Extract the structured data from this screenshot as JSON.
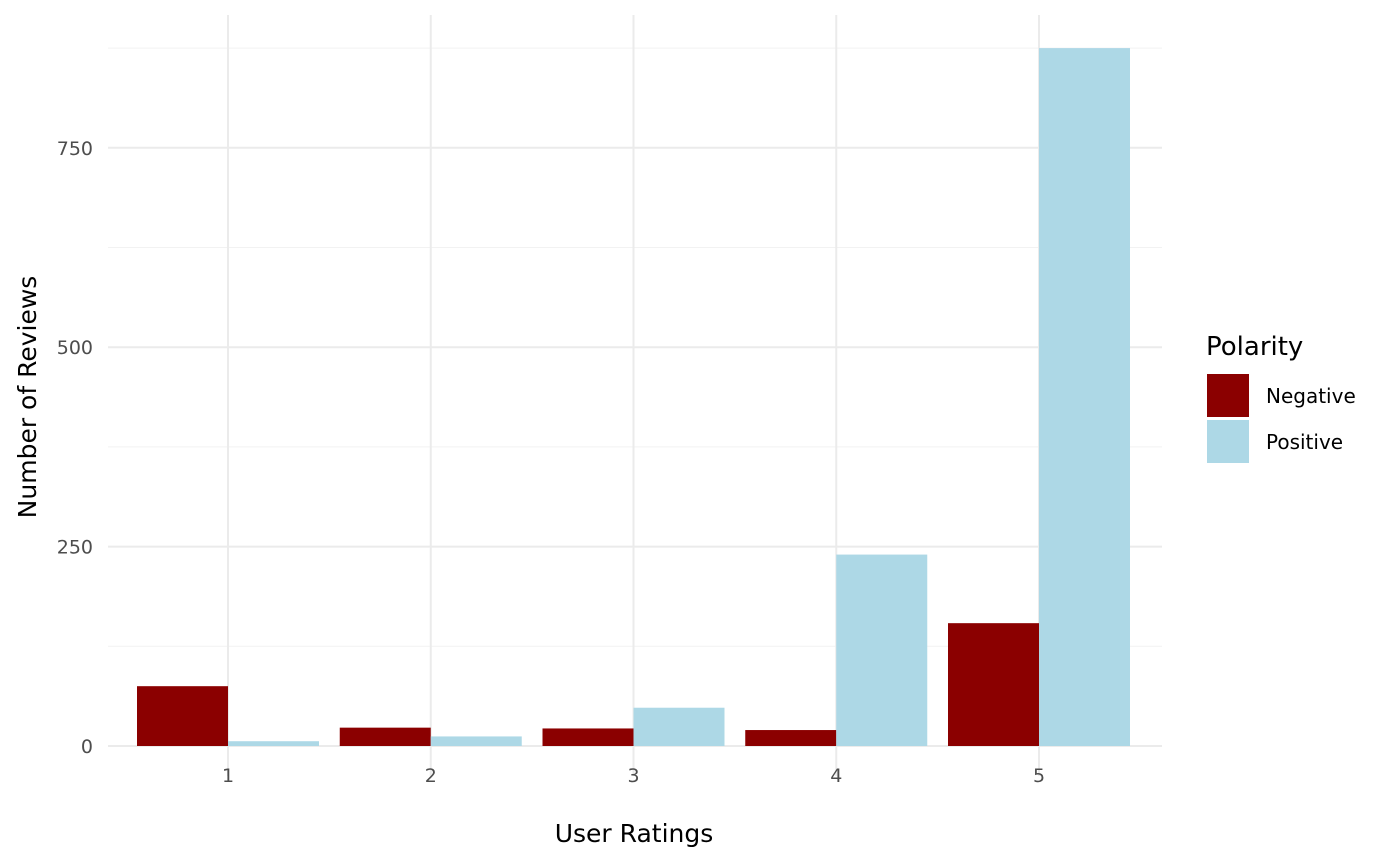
{
  "chart_data": {
    "type": "bar",
    "categories": [
      "1",
      "2",
      "3",
      "4",
      "5"
    ],
    "series": [
      {
        "name": "Negative",
        "color": "#8b0000",
        "values": [
          75,
          23,
          22,
          20,
          154
        ]
      },
      {
        "name": "Positive",
        "color": "#add8e6",
        "values": [
          6,
          12,
          48,
          240,
          875
        ]
      }
    ],
    "xlabel": "User Ratings",
    "ylabel": "Number of Reviews",
    "ylim": [
      0,
      875
    ],
    "yticks": [
      0,
      250,
      500,
      750
    ],
    "ytick_labels": [
      "0",
      "250",
      "500",
      "750"
    ],
    "legend": {
      "title": "Polarity",
      "position": "right"
    },
    "grid": true
  }
}
